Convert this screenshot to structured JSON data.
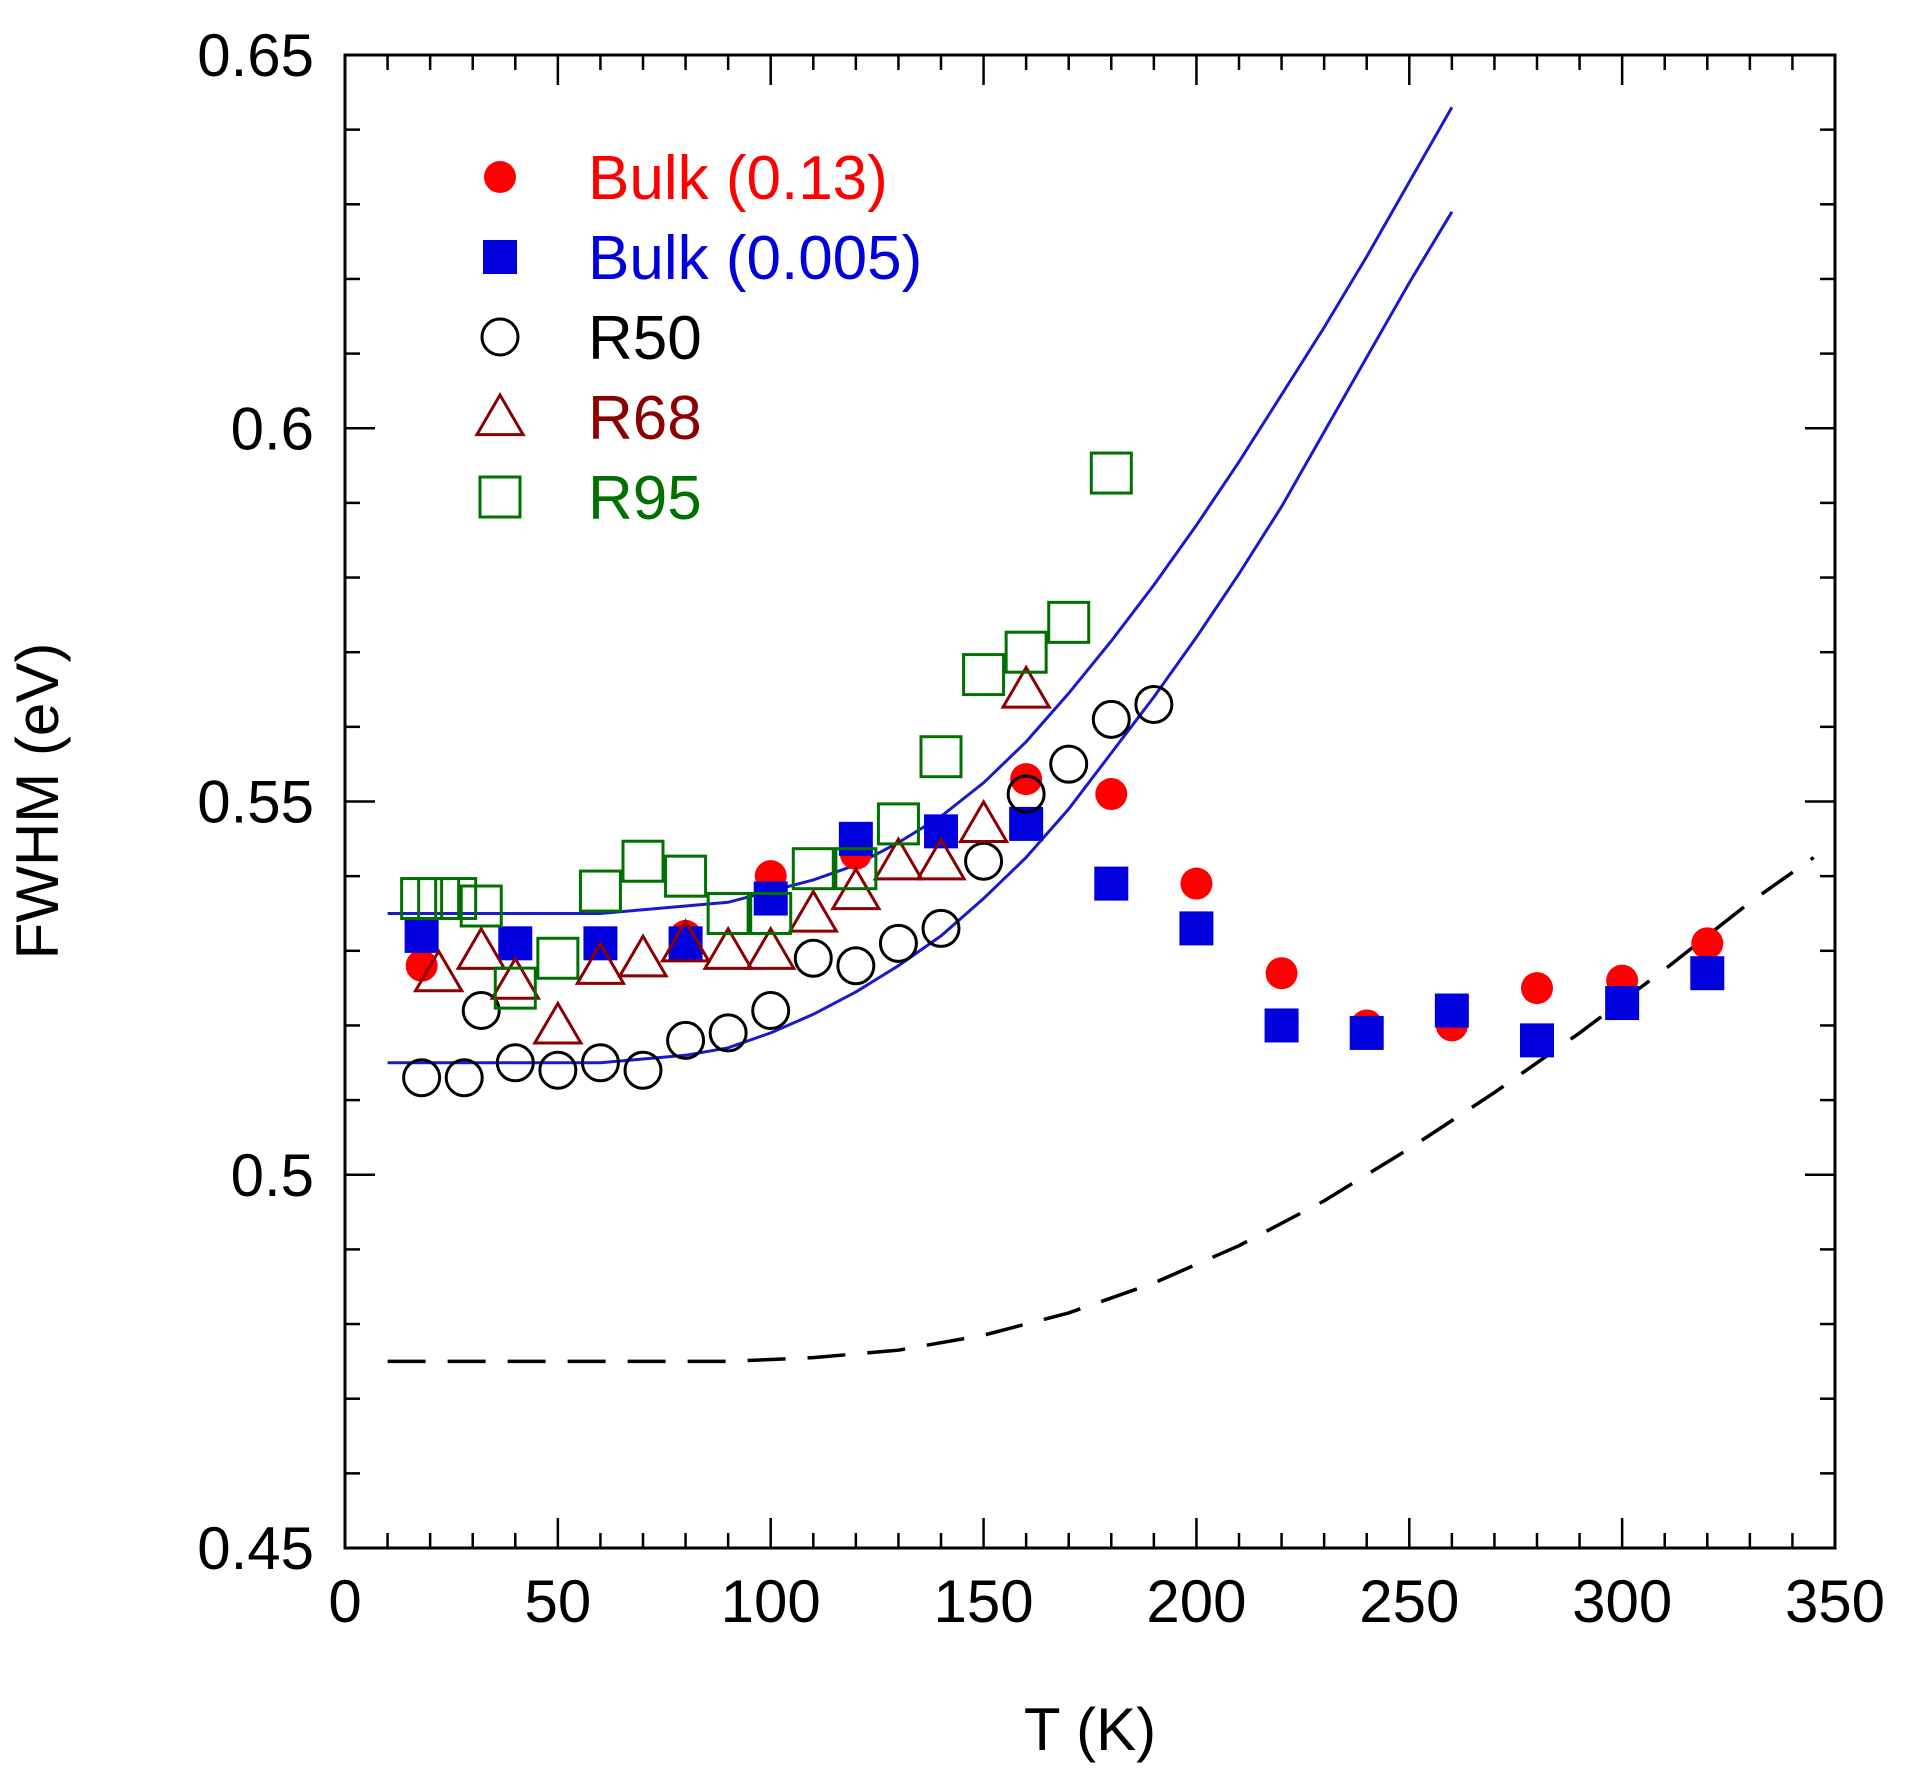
{
  "chart_data": {
    "type": "scatter",
    "title": "",
    "xlabel": "T (K)",
    "ylabel": "FWHM (eV)",
    "xlim": [
      0,
      350
    ],
    "ylim": [
      0.45,
      0.65
    ],
    "x_ticks": [
      0,
      50,
      100,
      150,
      200,
      250,
      300,
      350
    ],
    "x_tick_labels": [
      "0",
      "50",
      "100",
      "150",
      "200",
      "250",
      "300",
      "350"
    ],
    "y_ticks": [
      0.45,
      0.5,
      0.55,
      0.6,
      0.65
    ],
    "y_tick_labels": [
      "0.45",
      "0.5",
      "0.55",
      "0.6",
      "0.65"
    ],
    "x_minor_step": 10,
    "y_minor_step": 0.01,
    "grid": false,
    "legend_position": "top-left",
    "series": [
      {
        "name": "Bulk (0.13)",
        "marker": "filled-circle",
        "color": "#ff0000",
        "x": [
          18,
          40,
          60,
          80,
          100,
          120,
          140,
          160,
          180,
          200,
          220,
          240,
          260,
          280,
          300,
          320
        ],
        "y": [
          0.528,
          0.531,
          0.531,
          0.532,
          0.54,
          0.543,
          0.546,
          0.553,
          0.551,
          0.539,
          0.527,
          0.52,
          0.52,
          0.525,
          0.526,
          0.531
        ]
      },
      {
        "name": "Bulk (0.005)",
        "marker": "filled-square",
        "color": "#0000dd",
        "x": [
          18,
          40,
          60,
          80,
          100,
          120,
          140,
          160,
          180,
          200,
          220,
          240,
          260,
          280,
          300,
          320
        ],
        "y": [
          0.532,
          0.531,
          0.531,
          0.531,
          0.537,
          0.545,
          0.546,
          0.547,
          0.539,
          0.533,
          0.52,
          0.519,
          0.522,
          0.518,
          0.523,
          0.527
        ]
      },
      {
        "name": "R50",
        "marker": "open-circle",
        "color": "#000000",
        "x": [
          18,
          28,
          32,
          40,
          50,
          60,
          70,
          80,
          90,
          100,
          110,
          120,
          130,
          140,
          150,
          160,
          170,
          180,
          190
        ],
        "y": [
          0.513,
          0.513,
          0.522,
          0.515,
          0.514,
          0.515,
          0.514,
          0.518,
          0.519,
          0.522,
          0.529,
          0.528,
          0.531,
          0.533,
          0.542,
          0.551,
          0.555,
          0.561,
          0.563
        ]
      },
      {
        "name": "R68",
        "marker": "open-triangle",
        "color": "#8b0000",
        "x": [
          22,
          32,
          40,
          50,
          60,
          70,
          80,
          90,
          100,
          110,
          120,
          130,
          140,
          150,
          160
        ],
        "y": [
          0.527,
          0.53,
          0.526,
          0.52,
          0.528,
          0.529,
          0.531,
          0.53,
          0.53,
          0.535,
          0.538,
          0.542,
          0.542,
          0.547,
          0.565
        ]
      },
      {
        "name": "R95",
        "marker": "open-square",
        "color": "#007000",
        "x": [
          18,
          22,
          26,
          32,
          40,
          50,
          60,
          70,
          80,
          90,
          100,
          110,
          120,
          130,
          140,
          150,
          160,
          170,
          180
        ],
        "y": [
          0.537,
          0.537,
          0.537,
          0.536,
          0.525,
          0.529,
          0.538,
          0.542,
          0.54,
          0.535,
          0.535,
          0.541,
          0.541,
          0.547,
          0.556,
          0.567,
          0.57,
          0.574,
          0.594
        ]
      }
    ],
    "curves": [
      {
        "name": "fit-upper",
        "style": "solid",
        "color": "#1a1acc",
        "x": [
          10,
          20,
          30,
          40,
          50,
          60,
          70,
          80,
          90,
          100,
          110,
          120,
          130,
          140,
          150,
          160,
          170,
          180,
          190,
          200,
          210,
          220,
          230,
          240,
          250,
          260
        ],
        "y": [
          0.535,
          0.535,
          0.535,
          0.535,
          0.535,
          0.535,
          0.5355,
          0.536,
          0.5365,
          0.538,
          0.5395,
          0.5415,
          0.5445,
          0.548,
          0.5525,
          0.558,
          0.5645,
          0.5715,
          0.579,
          0.587,
          0.5955,
          0.6045,
          0.6135,
          0.623,
          0.633,
          0.643
        ]
      },
      {
        "name": "fit-lower",
        "style": "solid",
        "color": "#1a1acc",
        "x": [
          10,
          20,
          30,
          40,
          50,
          60,
          70,
          80,
          90,
          100,
          110,
          120,
          130,
          140,
          150,
          160,
          170,
          180,
          190,
          200,
          210,
          220,
          230,
          240,
          250,
          260
        ],
        "y": [
          0.515,
          0.515,
          0.515,
          0.515,
          0.515,
          0.515,
          0.5155,
          0.516,
          0.517,
          0.519,
          0.5215,
          0.5245,
          0.528,
          0.532,
          0.537,
          0.5425,
          0.549,
          0.5565,
          0.564,
          0.572,
          0.5805,
          0.5895,
          0.5995,
          0.6095,
          0.6195,
          0.629
        ]
      },
      {
        "name": "fit-bulk",
        "style": "dashed",
        "color": "#000000",
        "x": [
          10,
          30,
          50,
          70,
          90,
          110,
          130,
          150,
          170,
          190,
          210,
          230,
          250,
          270,
          290,
          310,
          330,
          345
        ],
        "y": [
          0.475,
          0.475,
          0.475,
          0.475,
          0.475,
          0.4755,
          0.4765,
          0.4785,
          0.4815,
          0.4855,
          0.4905,
          0.4965,
          0.5035,
          0.511,
          0.519,
          0.5275,
          0.5365,
          0.5425
        ]
      }
    ]
  }
}
